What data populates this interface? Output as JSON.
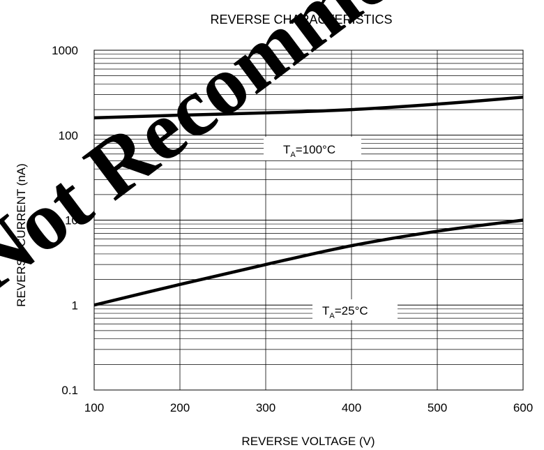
{
  "chart_data": {
    "type": "line",
    "title": "REVERSE CHARACTERISTICS",
    "xlabel": "REVERSE VOLTAGE (V)",
    "ylabel": "REVERSE CURRENT (nA)",
    "xlim": [
      100,
      600
    ],
    "ylim": [
      0.1,
      1000
    ],
    "yscale": "log",
    "grid": true,
    "x_ticks": [
      "100",
      "200",
      "300",
      "400",
      "500",
      "600"
    ],
    "y_ticks": [
      "0.1",
      "1",
      "10",
      "100",
      "1000"
    ],
    "series": [
      {
        "label_main": "T",
        "label_sub": "A",
        "label_rest": "=100°C",
        "x": [
          100,
          200,
          300,
          400,
          500,
          600
        ],
        "y": [
          160,
          172,
          183,
          200,
          232,
          280
        ]
      },
      {
        "label_main": "T",
        "label_sub": "A",
        "label_rest": "=25°C",
        "x": [
          100,
          200,
          300,
          400,
          500,
          600
        ],
        "y": [
          1.0,
          1.75,
          3.0,
          5.0,
          7.4,
          10.0
        ]
      }
    ],
    "watermark": "Not Recommended",
    "colors": {
      "line": "#000000",
      "grid": "#000000",
      "watermark": "#000000"
    }
  }
}
